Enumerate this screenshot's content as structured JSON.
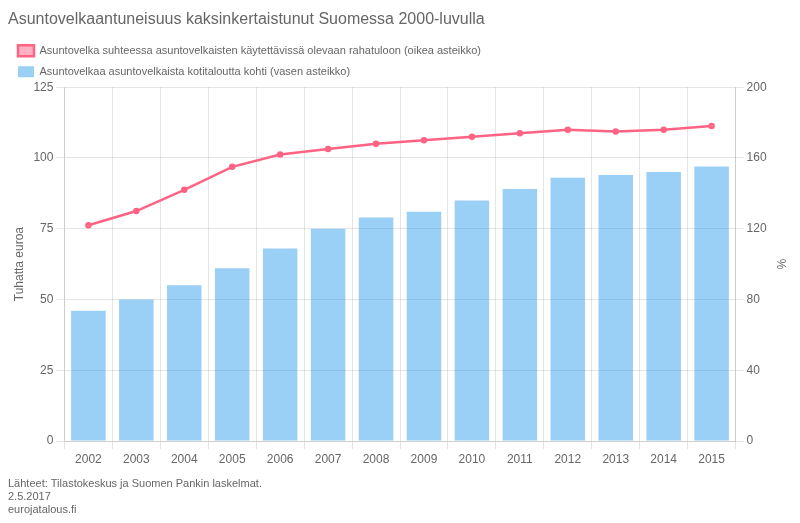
{
  "chart_data": {
    "type": "bar",
    "title": "Asuntovelkaantuneisuus kaksinkertaistunut Suomessa 2000-luvulla",
    "categories": [
      "2002",
      "2003",
      "2004",
      "2005",
      "2006",
      "2007",
      "2008",
      "2009",
      "2010",
      "2011",
      "2012",
      "2013",
      "2014",
      "2015"
    ],
    "series": [
      {
        "name": "Asuntovelkaa asuntovelkaista kotitaloutta kohti (vasen asteikko)",
        "type": "bar",
        "values": [
          46,
          50,
          55,
          61,
          68,
          75,
          79,
          81,
          85,
          89,
          93,
          94,
          95,
          97
        ]
      },
      {
        "name": "Asuntovelka suhteessa asuntovelkaisten käytettävissä olevaan rahatuloon (oikea asteikko)",
        "type": "line",
        "axis": "y2",
        "values": [
          122,
          130,
          142,
          155,
          162,
          165,
          168,
          170,
          172,
          174,
          176,
          175,
          176,
          178
        ]
      }
    ],
    "ylabel": "Tuhatta euroa",
    "y2label": "%",
    "ylim": [
      0,
      125
    ],
    "yticks": [
      0,
      25,
      50,
      75,
      100,
      125
    ],
    "y2lim": [
      0,
      200
    ],
    "y2ticks": [
      0,
      40,
      80,
      120,
      160,
      200
    ],
    "grid": true,
    "legend": "upper left",
    "annotations": [
      "Lähteet: Tilastokeskus ja Suomen Pankin laskelmat.",
      "2.5.2017",
      "eurojatalous.fi"
    ]
  }
}
